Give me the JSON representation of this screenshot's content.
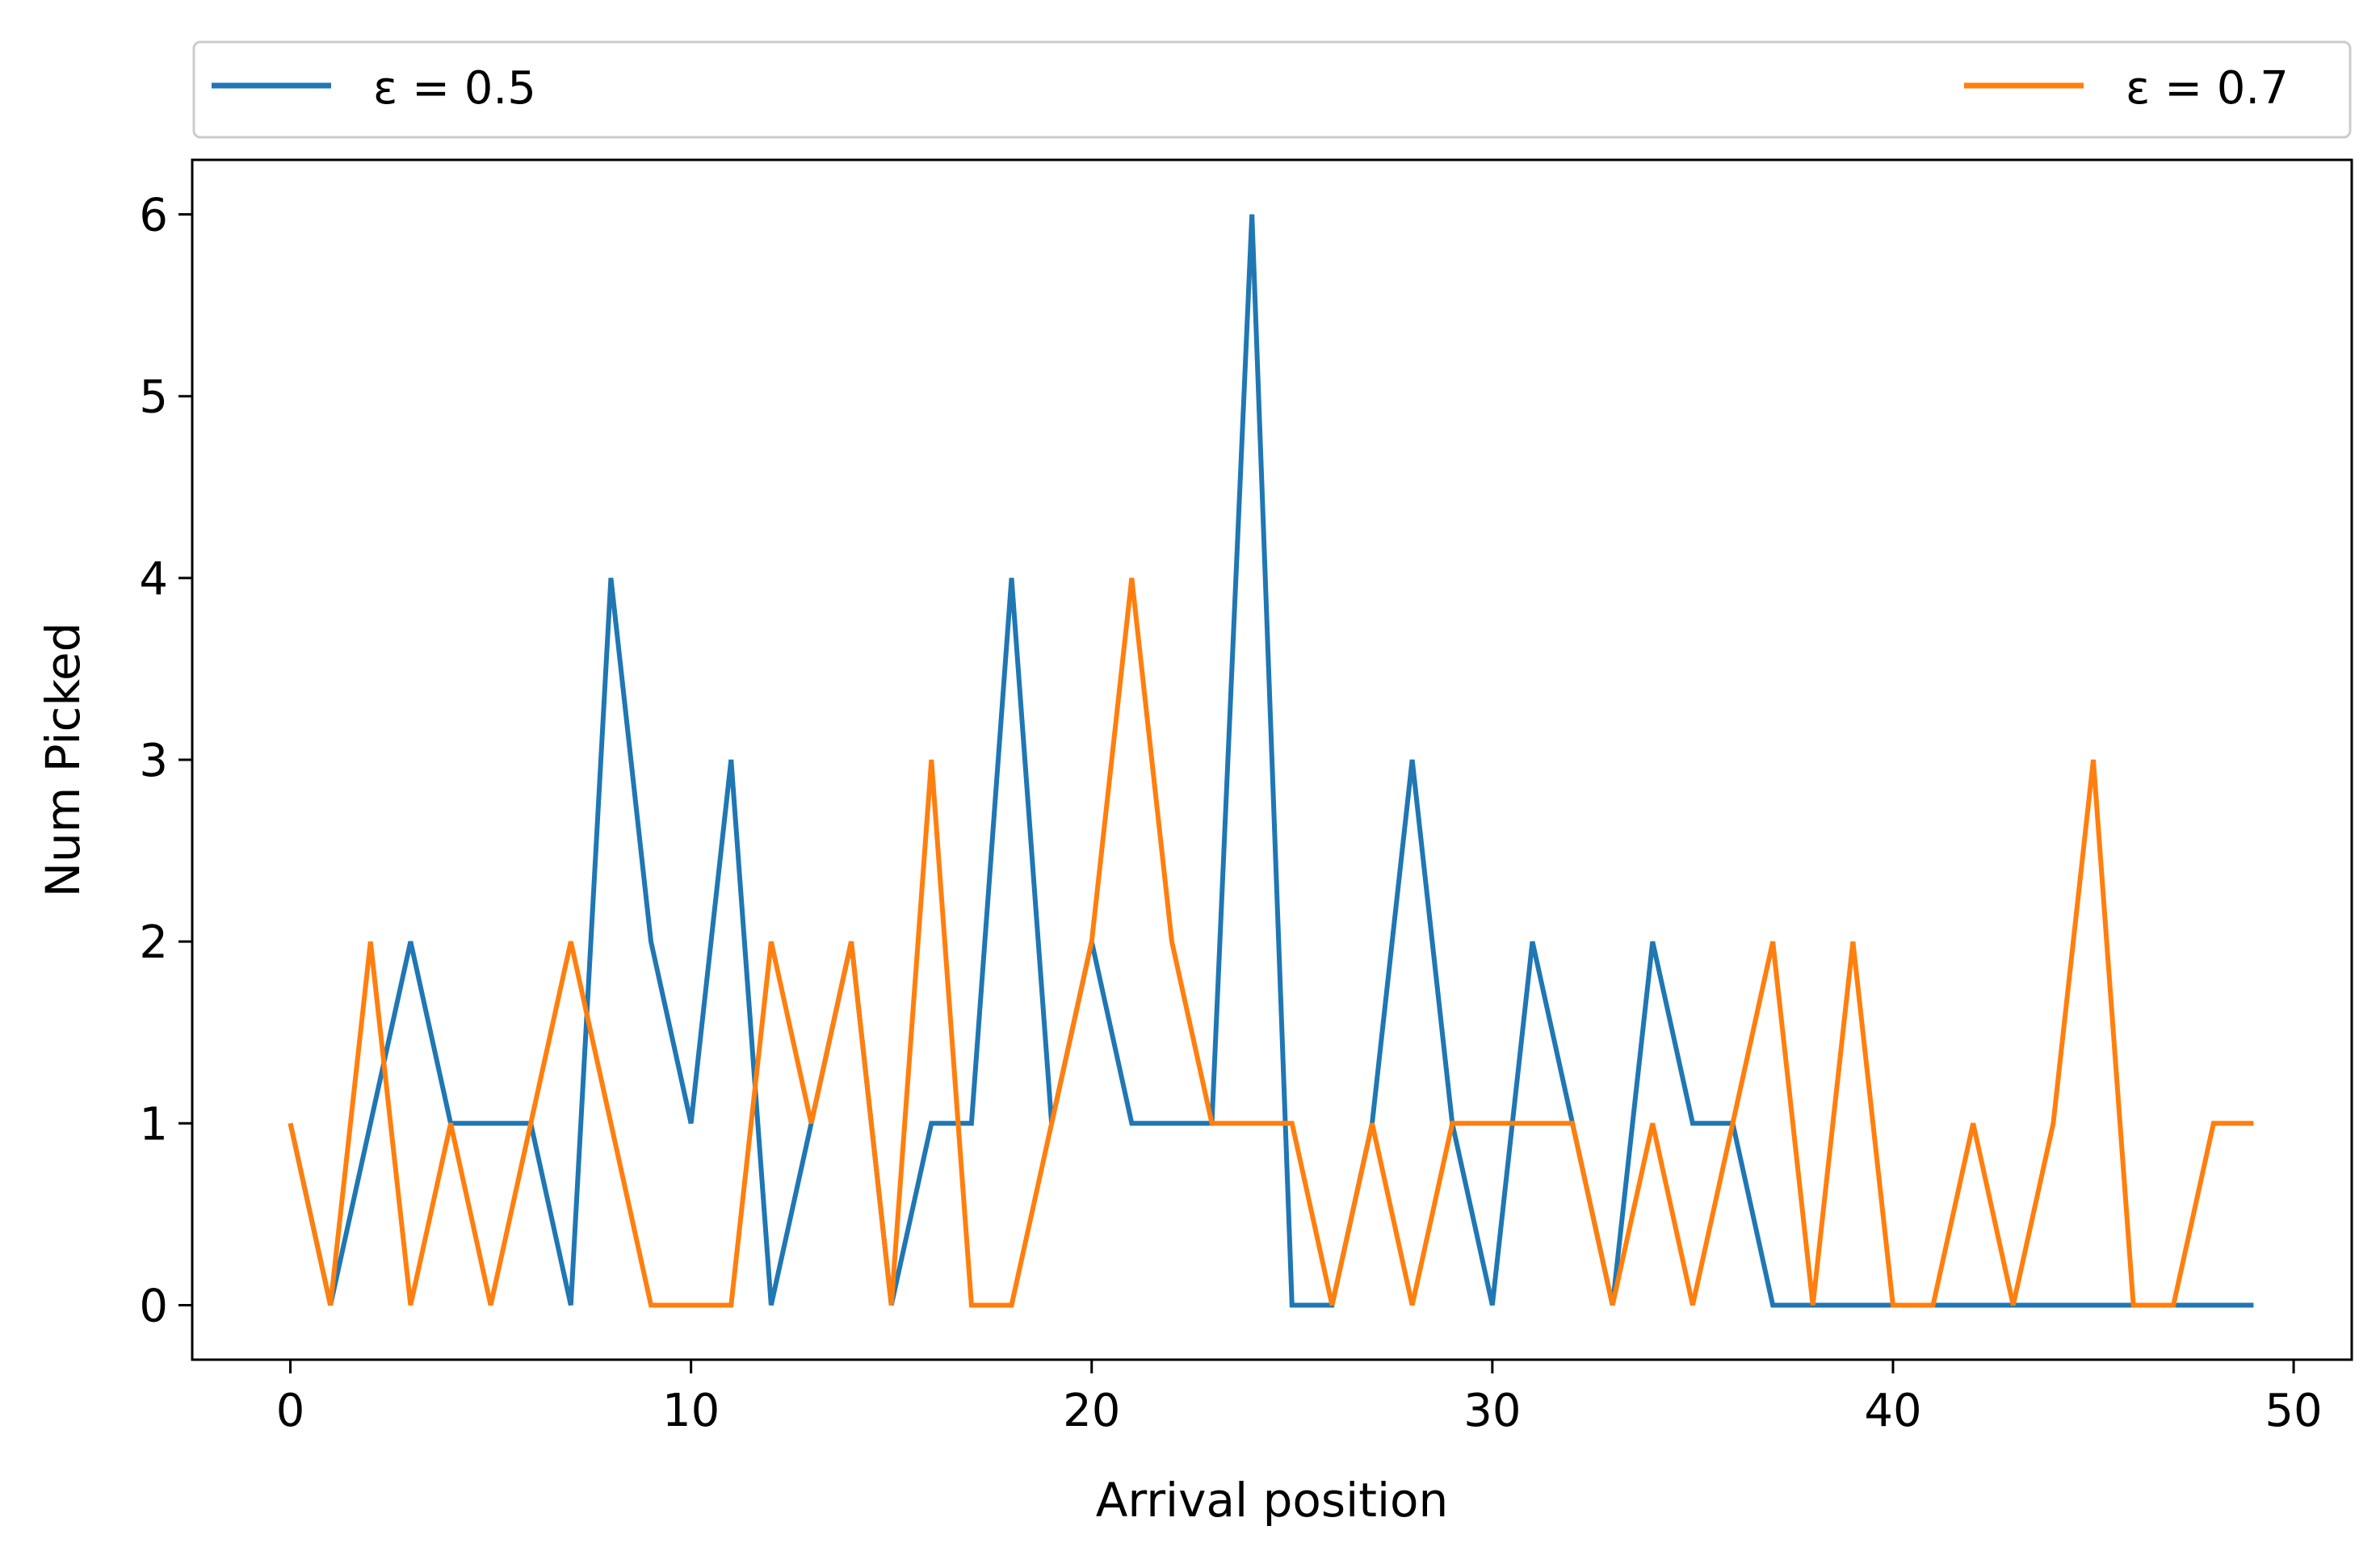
{
  "chart_data": {
    "type": "line",
    "xlabel": "Arrival position",
    "ylabel": "Num Picked",
    "xlim": [
      -2.45,
      51.45
    ],
    "ylim": [
      -0.3,
      6.3
    ],
    "xticks": [
      0,
      10,
      20,
      30,
      40,
      50
    ],
    "yticks": [
      0,
      1,
      2,
      3,
      4,
      5,
      6
    ],
    "grid": false,
    "legend_placement": "top, above plot, expanded",
    "x": [
      0,
      1,
      2,
      3,
      4,
      5,
      6,
      7,
      8,
      9,
      10,
      11,
      12,
      13,
      14,
      15,
      16,
      17,
      18,
      19,
      20,
      21,
      22,
      23,
      24,
      25,
      26,
      27,
      28,
      29,
      30,
      31,
      32,
      33,
      34,
      35,
      36,
      37,
      38,
      39,
      40,
      41,
      42,
      43,
      44,
      45,
      46,
      47,
      48,
      49
    ],
    "series": [
      {
        "name": "ε = 0.5",
        "color": "#1f77b4",
        "values": [
          1,
          0,
          1,
          2,
          1,
          1,
          1,
          0,
          4,
          2,
          1,
          3,
          0,
          1,
          2,
          0,
          1,
          1,
          4,
          1,
          2,
          1,
          1,
          1,
          6,
          0,
          0,
          1,
          3,
          1,
          0,
          2,
          1,
          0,
          2,
          1,
          1,
          0,
          0,
          0,
          0,
          0,
          0,
          0,
          0,
          0,
          0,
          0,
          0,
          0
        ]
      },
      {
        "name": "ε = 0.7",
        "color": "#ff7f0e",
        "values": [
          1,
          0,
          2,
          0,
          1,
          0,
          1,
          2,
          1,
          0,
          0,
          0,
          2,
          1,
          2,
          0,
          3,
          0,
          0,
          1,
          2,
          4,
          2,
          1,
          1,
          1,
          0,
          1,
          0,
          1,
          1,
          1,
          1,
          0,
          1,
          0,
          1,
          2,
          0,
          2,
          0,
          0,
          1,
          0,
          1,
          3,
          0,
          0,
          1,
          1
        ]
      }
    ]
  }
}
